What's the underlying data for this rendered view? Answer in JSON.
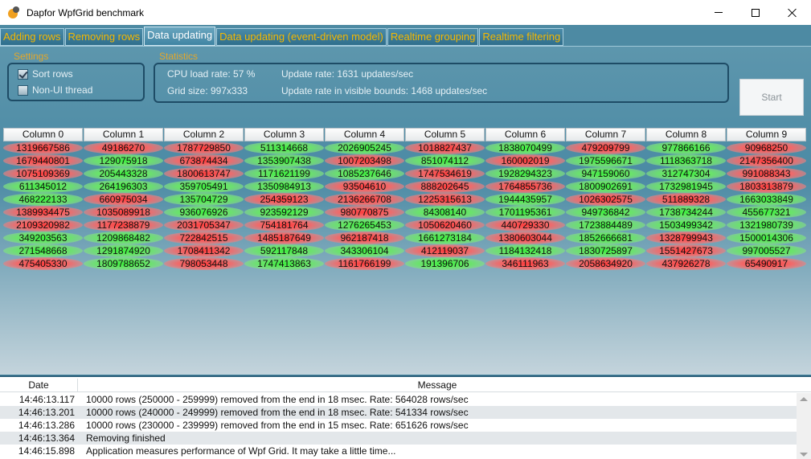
{
  "window": {
    "title": "Dapfor WpfGrid benchmark"
  },
  "tabs": [
    {
      "label": "Adding rows",
      "active": false
    },
    {
      "label": "Removing rows",
      "active": false
    },
    {
      "label": "Data updating",
      "active": true
    },
    {
      "label": "Data updating (event-driven model)",
      "active": false
    },
    {
      "label": "Realtime grouping",
      "active": false
    },
    {
      "label": "Realtime filtering",
      "active": false
    }
  ],
  "settings": {
    "label": "Settings",
    "sort_rows": {
      "label": "Sort rows",
      "checked": true
    },
    "non_ui_thread": {
      "label": "Non-UI thread",
      "checked": false
    }
  },
  "statistics": {
    "label": "Statistics",
    "cpu_load": "CPU load rate: 57 %",
    "grid_size": "Grid size: 997x333",
    "update_rate": "Update rate: 1631 updates/sec",
    "update_rate_visible": "Update rate in visible bounds: 1468 updates/sec"
  },
  "start_button": {
    "label": "Start"
  },
  "grid": {
    "columns": [
      "Column 0",
      "Column 1",
      "Column 2",
      "Column 3",
      "Column 4",
      "Column 5",
      "Column 6",
      "Column 7",
      "Column 8",
      "Column 9"
    ],
    "rows": [
      {
        "values": [
          "1319667586",
          "49186270",
          "1787729850",
          "511314668",
          "2026905245",
          "1018827437",
          "1838070499",
          "479209799",
          "977866166",
          "90968250"
        ],
        "trend": [
          "r",
          "r",
          "r",
          "g",
          "g",
          "r",
          "g",
          "r",
          "g",
          "r"
        ]
      },
      {
        "values": [
          "1679440801",
          "129075918",
          "673874434",
          "1353907438",
          "1007203498",
          "851074112",
          "160002019",
          "1975596671",
          "1118363718",
          "2147356400"
        ],
        "trend": [
          "r",
          "g",
          "r",
          "g",
          "r",
          "g",
          "r",
          "g",
          "g",
          "r"
        ]
      },
      {
        "values": [
          "1075109369",
          "205443328",
          "1800613747",
          "1171621199",
          "1085237646",
          "1747534619",
          "1928294323",
          "947159060",
          "312747304",
          "991088343"
        ],
        "trend": [
          "r",
          "g",
          "r",
          "g",
          "g",
          "r",
          "g",
          "g",
          "g",
          "r"
        ]
      },
      {
        "values": [
          "611345012",
          "264196303",
          "359705491",
          "1350984913",
          "93504610",
          "888202645",
          "1764855736",
          "1800902691",
          "1732981945",
          "1803313879"
        ],
        "trend": [
          "g",
          "g",
          "g",
          "g",
          "r",
          "r",
          "r",
          "g",
          "g",
          "r"
        ]
      },
      {
        "values": [
          "468222133",
          "660975034",
          "135704729",
          "254359123",
          "2136266708",
          "1225315613",
          "1944435957",
          "1026302575",
          "511889328",
          "1663033849"
        ],
        "trend": [
          "g",
          "r",
          "g",
          "r",
          "r",
          "r",
          "g",
          "r",
          "r",
          "g"
        ]
      },
      {
        "values": [
          "1389934475",
          "1035089918",
          "936076926",
          "923592129",
          "980770875",
          "84308140",
          "1701195361",
          "949736842",
          "1738734244",
          "455677321"
        ],
        "trend": [
          "r",
          "r",
          "g",
          "g",
          "r",
          "g",
          "g",
          "g",
          "g",
          "g"
        ]
      },
      {
        "values": [
          "2109320982",
          "1177238879",
          "2031705347",
          "754181764",
          "1276265453",
          "1050620460",
          "440729330",
          "1723884489",
          "1503499342",
          "1321980739"
        ],
        "trend": [
          "r",
          "r",
          "r",
          "r",
          "g",
          "r",
          "r",
          "g",
          "g",
          "g"
        ]
      },
      {
        "values": [
          "349203563",
          "1209868482",
          "722842515",
          "1485187649",
          "962187418",
          "1661273184",
          "1380603044",
          "1852666681",
          "1328799943",
          "1500014306"
        ],
        "trend": [
          "g",
          "g",
          "r",
          "r",
          "r",
          "g",
          "r",
          "g",
          "r",
          "g"
        ]
      },
      {
        "values": [
          "271548668",
          "1291874920",
          "1708411342",
          "592117848",
          "343306104",
          "412119037",
          "1184132418",
          "1830725897",
          "1551427673",
          "997005527"
        ],
        "trend": [
          "g",
          "g",
          "r",
          "g",
          "g",
          "r",
          "g",
          "g",
          "r",
          "g"
        ]
      },
      {
        "values": [
          "475405330",
          "1809788652",
          "798053448",
          "1747413863",
          "1161766199",
          "191396706",
          "346111963",
          "2058634920",
          "437926278",
          "65490917"
        ],
        "trend": [
          "r",
          "g",
          "r",
          "g",
          "r",
          "g",
          "r",
          "r",
          "r",
          "r"
        ]
      }
    ]
  },
  "log": {
    "headers": {
      "date": "Date",
      "message": "Message"
    },
    "rows": [
      {
        "date": "14:46:13.117",
        "message": "10000 rows (250000 - 259999) removed from the end in 18 msec. Rate: 564028 rows/sec"
      },
      {
        "date": "14:46:13.201",
        "message": "10000 rows (240000 - 249999) removed from the end in 18 msec. Rate: 541334 rows/sec"
      },
      {
        "date": "14:46:13.286",
        "message": "10000 rows (230000 - 239999) removed from the end in 15 msec. Rate: 651626 rows/sec"
      },
      {
        "date": "14:46:13.364",
        "message": "Removing finished"
      },
      {
        "date": "14:46:15.898",
        "message": "Application measures performance of Wpf Grid. It may take a little time..."
      }
    ]
  }
}
